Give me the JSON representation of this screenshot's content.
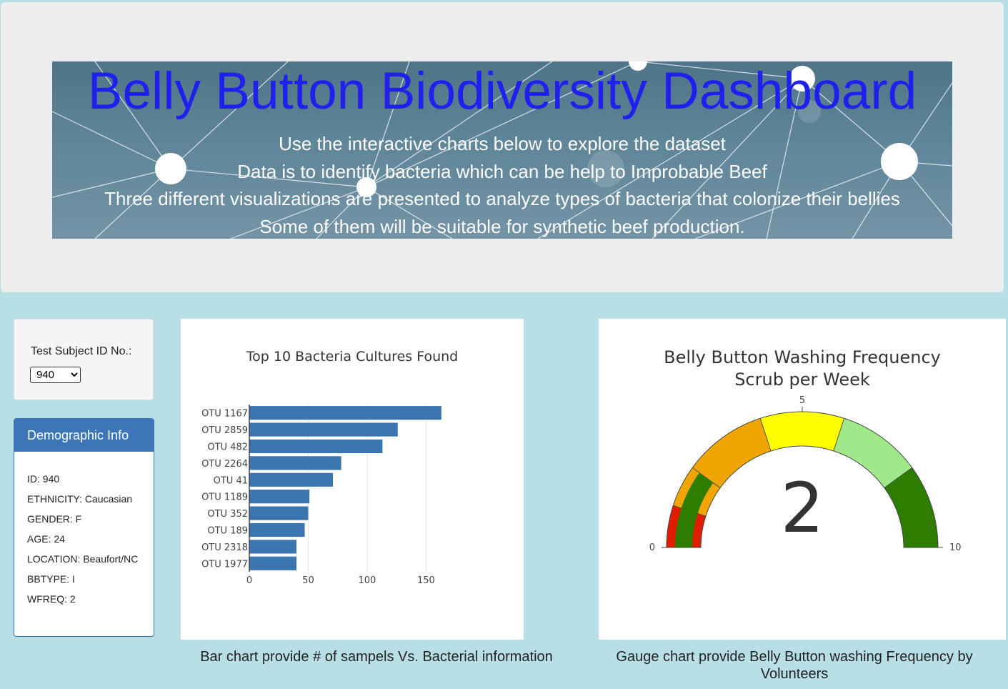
{
  "header": {
    "title": "Belly Button Biodiversity Dashboard",
    "lines": [
      "Use the interactive charts below to explore the dataset",
      "Data is to identify bacteria which can be help to Improbable Beef",
      "Three different visualizations are presented to analyze types of bacteria that colonize their bellies",
      "Some of them will be suitable for synthetic beef production."
    ]
  },
  "selector": {
    "label": "Test Subject ID No.:",
    "value": "940"
  },
  "demographic": {
    "title": "Demographic Info",
    "items": [
      "ID: 940",
      "ETHNICITY: Caucasian",
      "GENDER: F",
      "AGE: 24",
      "LOCATION: Beaufort/NC",
      "BBTYPE: I",
      "WFREQ: 2"
    ]
  },
  "captions": {
    "bar": "Bar chart provide # of sampels Vs. Bacterial information",
    "gauge": "Gauge chart provide Belly Button washing Frequency by Volunteers"
  },
  "colors": {
    "bar": "#3b75b0",
    "gauge_steps": [
      "#e01d00",
      "#2e7d00",
      "#e01d00",
      "#f0a500",
      "#ffff00",
      "#a0e98a",
      "#2e7d00"
    ],
    "gauge_bar": "#2e7d00"
  },
  "chart_data": [
    {
      "type": "bar",
      "orientation": "horizontal",
      "title": "Top 10 Bacteria Cultures Found",
      "categories": [
        "OTU 1167",
        "OTU 2859",
        "OTU 482",
        "OTU 2264",
        "OTU 41",
        "OTU 1189",
        "OTU 352",
        "OTU 189",
        "OTU 2318",
        "OTU 1977"
      ],
      "values": [
        163,
        126,
        113,
        78,
        71,
        51,
        50,
        47,
        40,
        40
      ],
      "xticks": [
        0,
        50,
        100,
        150
      ],
      "xlim": [
        0,
        171.6
      ],
      "grid": true
    },
    {
      "type": "gauge",
      "title": "Belly Button Washing Frequency",
      "subtitle": "Scrub per Week",
      "value": 2,
      "range": [
        0,
        10
      ],
      "ticks": [
        0,
        5,
        10
      ],
      "steps": [
        {
          "range": [
            0,
            1
          ],
          "color": "#e01d00"
        },
        {
          "range": [
            1,
            2
          ],
          "color": "#f0a500"
        },
        {
          "range": [
            2,
            4
          ],
          "color": "#f0a500"
        },
        {
          "range": [
            4,
            6
          ],
          "color": "#ffff00"
        },
        {
          "range": [
            6,
            8
          ],
          "color": "#a0e98a"
        },
        {
          "range": [
            8,
            10
          ],
          "color": "#2e7d00"
        }
      ]
    }
  ]
}
